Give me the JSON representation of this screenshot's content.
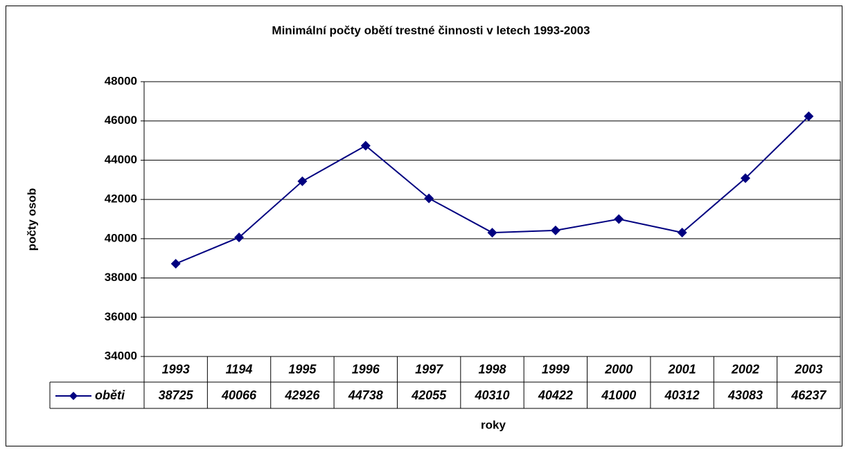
{
  "chart_data": {
    "type": "line",
    "title": "Minimální počty obětí trestné činnosti v letech 1993-2003",
    "categories": [
      "1993",
      "1194",
      "1995",
      "1996",
      "1997",
      "1998",
      "1999",
      "2000",
      "2001",
      "2002",
      "2003"
    ],
    "series": [
      {
        "name": "oběti",
        "color": "#000080",
        "values": [
          38725,
          40066,
          42926,
          44738,
          42055,
          40310,
          40422,
          41000,
          40312,
          43083,
          46237
        ]
      }
    ],
    "ylim": [
      34000,
      48000
    ],
    "yticks": [
      34000,
      36000,
      38000,
      40000,
      42000,
      44000,
      46000,
      48000
    ],
    "ylabel": "počty osob",
    "xlabel": "roky",
    "grid": true,
    "data_table": true
  }
}
